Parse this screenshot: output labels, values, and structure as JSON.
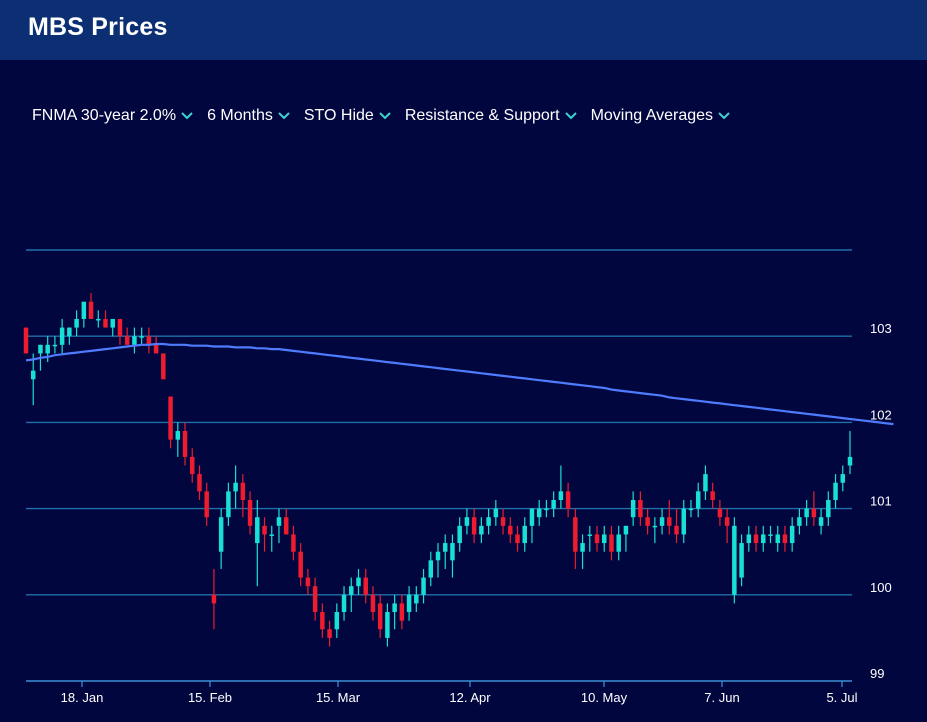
{
  "header": {
    "title": "MBS Prices"
  },
  "toolbar": {
    "items": [
      {
        "label": "FNMA 30-year 2.0%"
      },
      {
        "label": "6 Months"
      },
      {
        "label": "STO Hide"
      },
      {
        "label": "Resistance & Support"
      },
      {
        "label": "Moving Averages"
      }
    ]
  },
  "colors": {
    "background": "#02063f",
    "header": "#0b2f72",
    "up_candle": "#19e0d4",
    "down_candle": "#ee1c2e",
    "moving_average": "#4f7cff",
    "gridline": "#1f6fa8",
    "chevron": "#3ad3d0"
  },
  "chart_data": {
    "type": "candlestick",
    "title": "",
    "xlabel": "",
    "ylabel": "",
    "ylim": [
      99,
      104
    ],
    "y_ticks": [
      99,
      100,
      101,
      102,
      103
    ],
    "gridlines_at": [
      100,
      101,
      102,
      103,
      104
    ],
    "x_ticks": [
      "18. Jan",
      "15. Feb",
      "15. Mar",
      "12. Apr",
      "10. May",
      "7. Jun",
      "5. Jul"
    ],
    "ohlc": [
      [
        103.1,
        103.1,
        102.8,
        102.8
      ],
      [
        102.5,
        102.8,
        102.2,
        102.6
      ],
      [
        102.8,
        102.9,
        102.6,
        102.9
      ],
      [
        102.8,
        103.0,
        102.7,
        102.9
      ],
      [
        102.9,
        103.0,
        102.8,
        102.9
      ],
      [
        102.9,
        103.2,
        102.8,
        103.1
      ],
      [
        103.0,
        103.1,
        102.9,
        103.1
      ],
      [
        103.1,
        103.3,
        103.0,
        103.2
      ],
      [
        103.2,
        103.4,
        103.1,
        103.4
      ],
      [
        103.4,
        103.5,
        103.2,
        103.2
      ],
      [
        103.2,
        103.3,
        103.1,
        103.2
      ],
      [
        103.2,
        103.3,
        103.1,
        103.1
      ],
      [
        103.1,
        103.2,
        103.0,
        103.2
      ],
      [
        103.2,
        103.2,
        102.9,
        103.0
      ],
      [
        103.0,
        103.1,
        102.9,
        102.9
      ],
      [
        102.9,
        103.1,
        102.8,
        103.0
      ],
      [
        103.0,
        103.1,
        102.9,
        103.0
      ],
      [
        103.0,
        103.1,
        102.8,
        102.9
      ],
      [
        102.9,
        103.0,
        102.8,
        102.8
      ],
      [
        102.8,
        102.8,
        102.5,
        102.5
      ],
      [
        102.3,
        102.3,
        101.7,
        101.8
      ],
      [
        101.8,
        102.0,
        101.6,
        101.9
      ],
      [
        101.9,
        102.0,
        101.5,
        101.6
      ],
      [
        101.6,
        101.7,
        101.3,
        101.4
      ],
      [
        101.4,
        101.5,
        101.1,
        101.2
      ],
      [
        101.2,
        101.3,
        100.8,
        100.9
      ],
      [
        100.0,
        100.3,
        99.6,
        99.9
      ],
      [
        100.5,
        101.0,
        100.3,
        100.9
      ],
      [
        100.9,
        101.3,
        100.8,
        101.2
      ],
      [
        101.2,
        101.5,
        101.0,
        101.3
      ],
      [
        101.3,
        101.4,
        100.9,
        101.1
      ],
      [
        101.1,
        101.2,
        100.7,
        100.8
      ],
      [
        100.6,
        101.1,
        100.1,
        100.9
      ],
      [
        100.8,
        100.9,
        100.5,
        100.7
      ],
      [
        100.7,
        100.8,
        100.5,
        100.7
      ],
      [
        100.8,
        101.0,
        100.6,
        100.9
      ],
      [
        100.9,
        101.0,
        100.7,
        100.7
      ],
      [
        100.7,
        100.8,
        100.4,
        100.5
      ],
      [
        100.5,
        100.6,
        100.1,
        100.2
      ],
      [
        100.2,
        100.3,
        100.0,
        100.1
      ],
      [
        100.1,
        100.2,
        99.7,
        99.8
      ],
      [
        99.8,
        99.9,
        99.5,
        99.6
      ],
      [
        99.6,
        99.7,
        99.4,
        99.5
      ],
      [
        99.6,
        99.9,
        99.5,
        99.8
      ],
      [
        99.8,
        100.1,
        99.7,
        100.0
      ],
      [
        100.0,
        100.2,
        99.8,
        100.1
      ],
      [
        100.1,
        100.3,
        100.0,
        100.2
      ],
      [
        100.2,
        100.3,
        99.9,
        100.0
      ],
      [
        100.0,
        100.1,
        99.7,
        99.8
      ],
      [
        99.9,
        100.0,
        99.5,
        99.6
      ],
      [
        99.5,
        99.9,
        99.4,
        99.8
      ],
      [
        99.8,
        100.0,
        99.6,
        99.9
      ],
      [
        99.9,
        100.0,
        99.6,
        99.7
      ],
      [
        99.8,
        100.1,
        99.7,
        100.0
      ],
      [
        99.9,
        100.1,
        99.8,
        100.0
      ],
      [
        100.0,
        100.3,
        99.9,
        100.2
      ],
      [
        100.2,
        100.5,
        100.1,
        100.4
      ],
      [
        100.4,
        100.6,
        100.2,
        100.5
      ],
      [
        100.5,
        100.7,
        100.3,
        100.6
      ],
      [
        100.4,
        100.7,
        100.2,
        100.6
      ],
      [
        100.6,
        100.9,
        100.5,
        100.8
      ],
      [
        100.8,
        101.0,
        100.7,
        100.9
      ],
      [
        100.9,
        101.0,
        100.6,
        100.7
      ],
      [
        100.7,
        100.9,
        100.6,
        100.8
      ],
      [
        100.8,
        101.0,
        100.7,
        100.9
      ],
      [
        100.9,
        101.1,
        100.8,
        101.0
      ],
      [
        100.9,
        101.0,
        100.7,
        100.8
      ],
      [
        100.8,
        100.9,
        100.6,
        100.7
      ],
      [
        100.7,
        100.8,
        100.5,
        100.6
      ],
      [
        100.6,
        100.9,
        100.5,
        100.8
      ],
      [
        100.8,
        101.0,
        100.6,
        101.0
      ],
      [
        100.9,
        101.1,
        100.8,
        101.0
      ],
      [
        101.0,
        101.1,
        100.9,
        101.0
      ],
      [
        101.0,
        101.2,
        100.9,
        101.1
      ],
      [
        101.1,
        101.5,
        101.0,
        101.2
      ],
      [
        101.2,
        101.3,
        100.9,
        101.0
      ],
      [
        100.9,
        101.0,
        100.3,
        100.5
      ],
      [
        100.5,
        100.7,
        100.3,
        100.6
      ],
      [
        100.7,
        100.8,
        100.5,
        100.7
      ],
      [
        100.7,
        100.8,
        100.5,
        100.6
      ],
      [
        100.6,
        100.8,
        100.5,
        100.7
      ],
      [
        100.7,
        100.8,
        100.4,
        100.5
      ],
      [
        100.5,
        100.8,
        100.4,
        100.7
      ],
      [
        100.7,
        100.8,
        100.5,
        100.8
      ],
      [
        100.9,
        101.2,
        100.8,
        101.1
      ],
      [
        101.1,
        101.2,
        100.8,
        100.9
      ],
      [
        100.9,
        101.0,
        100.7,
        100.8
      ],
      [
        100.8,
        100.9,
        100.6,
        100.8
      ],
      [
        100.8,
        101.0,
        100.7,
        100.9
      ],
      [
        100.9,
        101.1,
        100.7,
        100.8
      ],
      [
        100.8,
        101.0,
        100.6,
        100.7
      ],
      [
        100.7,
        101.1,
        100.6,
        101.0
      ],
      [
        101.0,
        101.1,
        100.9,
        101.0
      ],
      [
        101.0,
        101.3,
        100.9,
        101.2
      ],
      [
        101.2,
        101.5,
        101.1,
        101.4
      ],
      [
        101.2,
        101.3,
        101.0,
        101.1
      ],
      [
        101.0,
        101.1,
        100.8,
        100.9
      ],
      [
        100.9,
        101.0,
        100.6,
        100.8
      ],
      [
        100.0,
        100.9,
        99.9,
        100.8
      ],
      [
        100.2,
        100.7,
        100.1,
        100.6
      ],
      [
        100.6,
        100.8,
        100.5,
        100.7
      ],
      [
        100.7,
        100.8,
        100.5,
        100.6
      ],
      [
        100.6,
        100.8,
        100.5,
        100.7
      ],
      [
        100.7,
        100.8,
        100.6,
        100.7
      ],
      [
        100.6,
        100.8,
        100.5,
        100.7
      ],
      [
        100.7,
        100.8,
        100.5,
        100.6
      ],
      [
        100.6,
        100.9,
        100.5,
        100.8
      ],
      [
        100.8,
        101.0,
        100.7,
        100.9
      ],
      [
        100.9,
        101.1,
        100.8,
        101.0
      ],
      [
        101.0,
        101.2,
        100.8,
        100.9
      ],
      [
        100.8,
        101.0,
        100.7,
        100.9
      ],
      [
        100.9,
        101.2,
        100.8,
        101.1
      ],
      [
        101.1,
        101.4,
        101.0,
        101.3
      ],
      [
        101.3,
        101.5,
        101.2,
        101.4
      ],
      [
        101.5,
        101.9,
        101.4,
        101.6
      ]
    ],
    "moving_average": [
      102.72,
      102.73,
      102.75,
      102.76,
      102.78,
      102.79,
      102.8,
      102.81,
      102.82,
      102.83,
      102.84,
      102.85,
      102.86,
      102.87,
      102.88,
      102.89,
      102.9,
      102.9,
      102.91,
      102.91,
      102.9,
      102.9,
      102.9,
      102.89,
      102.89,
      102.89,
      102.88,
      102.88,
      102.88,
      102.87,
      102.87,
      102.87,
      102.86,
      102.86,
      102.85,
      102.85,
      102.84,
      102.83,
      102.82,
      102.81,
      102.8,
      102.79,
      102.78,
      102.77,
      102.76,
      102.75,
      102.74,
      102.73,
      102.72,
      102.71,
      102.7,
      102.69,
      102.68,
      102.67,
      102.66,
      102.65,
      102.64,
      102.63,
      102.62,
      102.61,
      102.6,
      102.59,
      102.58,
      102.57,
      102.56,
      102.55,
      102.54,
      102.53,
      102.52,
      102.51,
      102.5,
      102.49,
      102.48,
      102.47,
      102.46,
      102.45,
      102.44,
      102.43,
      102.42,
      102.41,
      102.4,
      102.38,
      102.37,
      102.36,
      102.35,
      102.34,
      102.33,
      102.32,
      102.31,
      102.29,
      102.28,
      102.27,
      102.26,
      102.25,
      102.24,
      102.23,
      102.22,
      102.21,
      102.2,
      102.19,
      102.18,
      102.17,
      102.16,
      102.15,
      102.14,
      102.13,
      102.12,
      102.11,
      102.1,
      102.09,
      102.08,
      102.07,
      102.06,
      102.05,
      102.04,
      102.03,
      102.02,
      102.01,
      102.0,
      101.99,
      101.98
    ]
  }
}
